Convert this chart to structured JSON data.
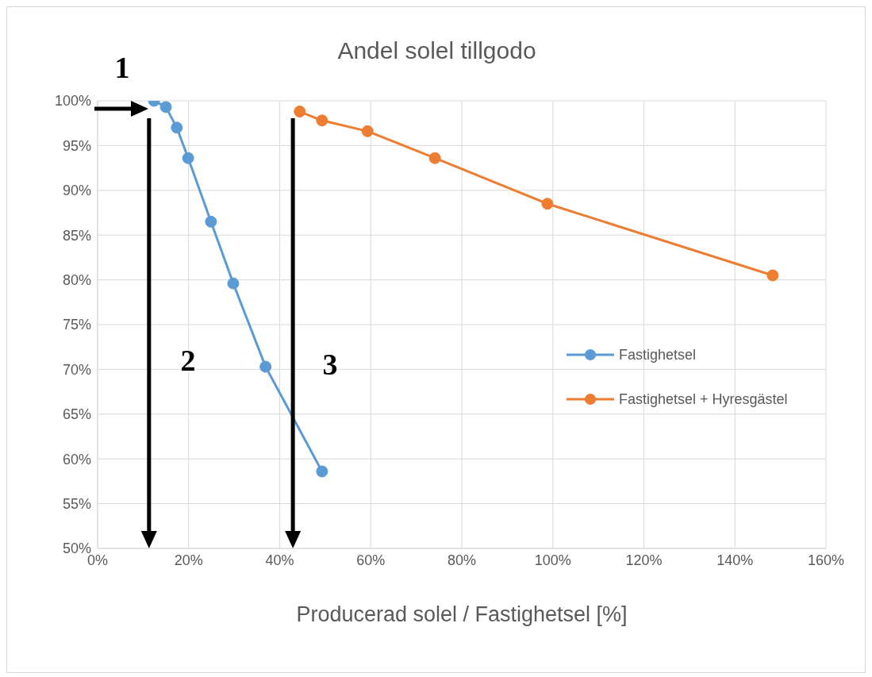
{
  "chart_data": {
    "type": "line",
    "title": "Andel solel tillgodo",
    "xlabel": "Producerad solel / Fastighetsel [%]",
    "series": [
      {
        "name": "Fastighetsel",
        "color": "#5b9bd5",
        "x": [
          12.4,
          15.0,
          17.4,
          19.9,
          24.9,
          29.8,
          36.9,
          49.3
        ],
        "values": [
          100,
          99.3,
          97.0,
          93.6,
          86.5,
          79.6,
          70.3,
          58.6
        ]
      },
      {
        "name": "Fastighetsel + Hyresgästel",
        "color": "#ed7d31",
        "x": [
          44.4,
          49.3,
          59.3,
          74.1,
          98.8,
          148.3
        ],
        "values": [
          98.8,
          97.8,
          96.6,
          93.6,
          88.5,
          80.5
        ]
      }
    ],
    "xlim": [
      0,
      160
    ],
    "xticks": [
      {
        "value": 0,
        "label": "0%"
      },
      {
        "value": 20,
        "label": "20%"
      },
      {
        "value": 40,
        "label": "40%"
      },
      {
        "value": 60,
        "label": "60%"
      },
      {
        "value": 80,
        "label": "80%"
      },
      {
        "value": 100,
        "label": "100%"
      },
      {
        "value": 120,
        "label": "120%"
      },
      {
        "value": 140,
        "label": "140%"
      },
      {
        "value": 160,
        "label": "160%"
      }
    ],
    "ylim": [
      50,
      100
    ],
    "yticks": [
      {
        "value": 50,
        "label": "50%"
      },
      {
        "value": 55,
        "label": "55%"
      },
      {
        "value": 60,
        "label": "60%"
      },
      {
        "value": 65,
        "label": "65%"
      },
      {
        "value": 70,
        "label": "70%"
      },
      {
        "value": 75,
        "label": "75%"
      },
      {
        "value": 80,
        "label": "80%"
      },
      {
        "value": 85,
        "label": "85%"
      },
      {
        "value": 90,
        "label": "90%"
      },
      {
        "value": 95,
        "label": "95%"
      },
      {
        "value": 100,
        "label": "100%"
      }
    ],
    "annotations": [
      "1",
      "2",
      "3"
    ],
    "ref_lines": [
      {
        "axis": "x",
        "value": 11.3,
        "color": "#000000"
      },
      {
        "axis": "x",
        "value": 42.9,
        "color": "#000000"
      }
    ],
    "grid": true,
    "legend": "right",
    "marker": "circle",
    "line_style": "solid"
  }
}
